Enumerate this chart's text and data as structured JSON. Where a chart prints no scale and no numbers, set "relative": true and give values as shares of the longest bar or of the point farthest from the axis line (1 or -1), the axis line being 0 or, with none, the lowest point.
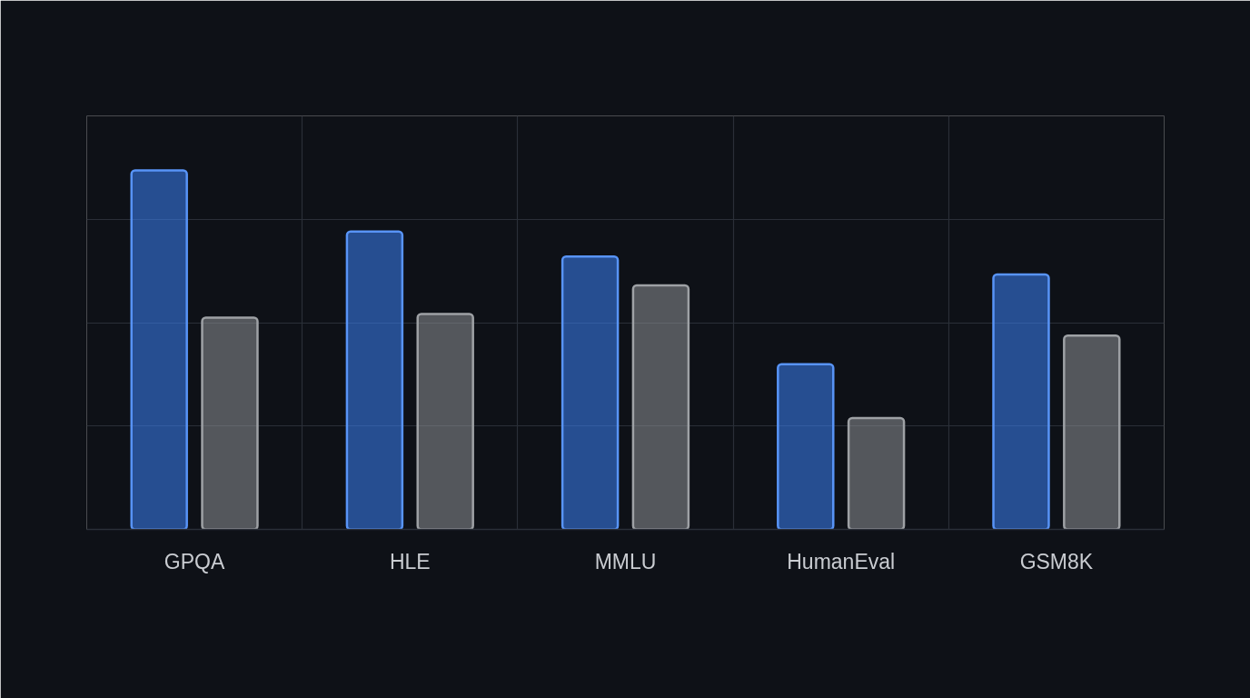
{
  "chart_data": {
    "type": "bar",
    "relative": true,
    "categories": [
      "GPQA",
      "HLE",
      "MMLU",
      "HumanEval",
      "GSM8K"
    ],
    "series": [
      {
        "color": "#3b82f6",
        "values": [
          1,
          0.83,
          0.76,
          0.46,
          0.71
        ]
      },
      {
        "color": "#8e9196",
        "values": [
          0.59,
          0.6,
          0.68,
          0.31,
          0.54
        ]
      }
    ],
    "grid": true
  }
}
